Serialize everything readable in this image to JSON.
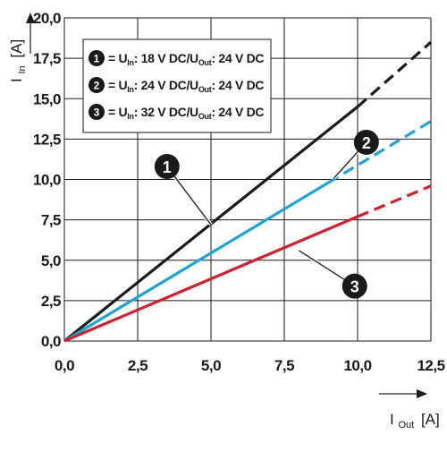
{
  "chart_data": {
    "type": "line",
    "x_tick_labels": [
      "0,0",
      "2,5",
      "5,0",
      "7,5",
      "10,0",
      "12,5"
    ],
    "y_tick_labels": [
      "0,0",
      "2,5",
      "5,0",
      "7,5",
      "10,0",
      "12,5",
      "15,0",
      "17,5",
      "20,0"
    ],
    "x_ticks": [
      0,
      2.5,
      5,
      7.5,
      10,
      12.5
    ],
    "y_ticks": [
      0,
      2.5,
      5,
      7.5,
      10,
      12.5,
      15,
      17.5,
      20
    ],
    "xlim": [
      0,
      12.5
    ],
    "ylim": [
      0,
      20
    ],
    "grid": true,
    "x_axis_label": {
      "main": "I",
      "sub": "Out",
      "unit": "[A]"
    },
    "y_axis_label": {
      "main": "I",
      "sub": "In",
      "unit": "[A]"
    },
    "legend": {
      "placement": "top-left",
      "entries": [
        {
          "number": "1",
          "parts": [
            "= U",
            "In",
            ": 18 V DC/U",
            "Out",
            ": 24 V DC"
          ]
        },
        {
          "number": "2",
          "parts": [
            "= U",
            "In",
            ": 24 V DC/U",
            "Out",
            ": 24 V DC"
          ]
        },
        {
          "number": "3",
          "parts": [
            "= U",
            "In",
            ": 32 V DC/U",
            "Out",
            ": 24 V DC"
          ]
        }
      ]
    },
    "series": [
      {
        "number": "1",
        "color": "#1a1a1a",
        "solid": [
          {
            "x": 0,
            "y": 0
          },
          {
            "x": 10,
            "y": 14.5
          }
        ],
        "dashed": [
          {
            "x": 10,
            "y": 14.5
          },
          {
            "x": 12.5,
            "y": 18.5
          }
        ],
        "marker": {
          "x": 3.5,
          "y": 10.8
        },
        "leader_to": {
          "x": 5,
          "y": 7.2
        }
      },
      {
        "number": "2",
        "color": "#1ea3d8",
        "solid": [
          {
            "x": 0,
            "y": 0
          },
          {
            "x": 9,
            "y": 9.8
          }
        ],
        "dashed": [
          {
            "x": 9,
            "y": 9.8
          },
          {
            "x": 12.5,
            "y": 13.6
          }
        ],
        "marker": {
          "x": 10.3,
          "y": 12.3
        },
        "leader_to": {
          "x": 9.2,
          "y": 10.1
        }
      },
      {
        "number": "3",
        "color": "#d0202e",
        "solid": [
          {
            "x": 0,
            "y": 0
          },
          {
            "x": 10,
            "y": 7.7
          }
        ],
        "dashed": [
          {
            "x": 10,
            "y": 7.7
          },
          {
            "x": 12.5,
            "y": 9.6
          }
        ],
        "marker": {
          "x": 9.9,
          "y": 3.4
        },
        "leader_to": {
          "x": 8,
          "y": 5.6
        }
      }
    ]
  }
}
